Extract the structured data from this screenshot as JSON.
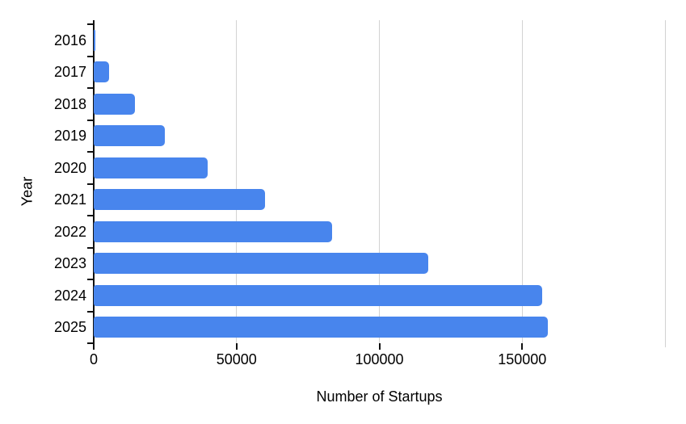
{
  "chart_data": {
    "type": "bar",
    "orientation": "horizontal",
    "title": "",
    "xlabel": "Number of Startups",
    "ylabel": "Year",
    "categories": [
      "2016",
      "2017",
      "2018",
      "2019",
      "2020",
      "2021",
      "2022",
      "2023",
      "2024",
      "2025"
    ],
    "values": [
      500,
      5500,
      14500,
      25000,
      40000,
      60000,
      83500,
      117000,
      157000,
      159000
    ],
    "xlim": [
      0,
      200000
    ],
    "x_ticks": [
      {
        "value": 0,
        "label": "0"
      },
      {
        "value": 50000,
        "label": "50000"
      },
      {
        "value": 100000,
        "label": "100000"
      },
      {
        "value": 150000,
        "label": "150000"
      },
      {
        "value": 200000,
        "label": ""
      }
    ],
    "grid": true,
    "legend": "none",
    "bar_color": "#4885ED",
    "axis_color": "#111111",
    "gridline_color": "#d2d2d2",
    "background_color": "#ffffff"
  }
}
